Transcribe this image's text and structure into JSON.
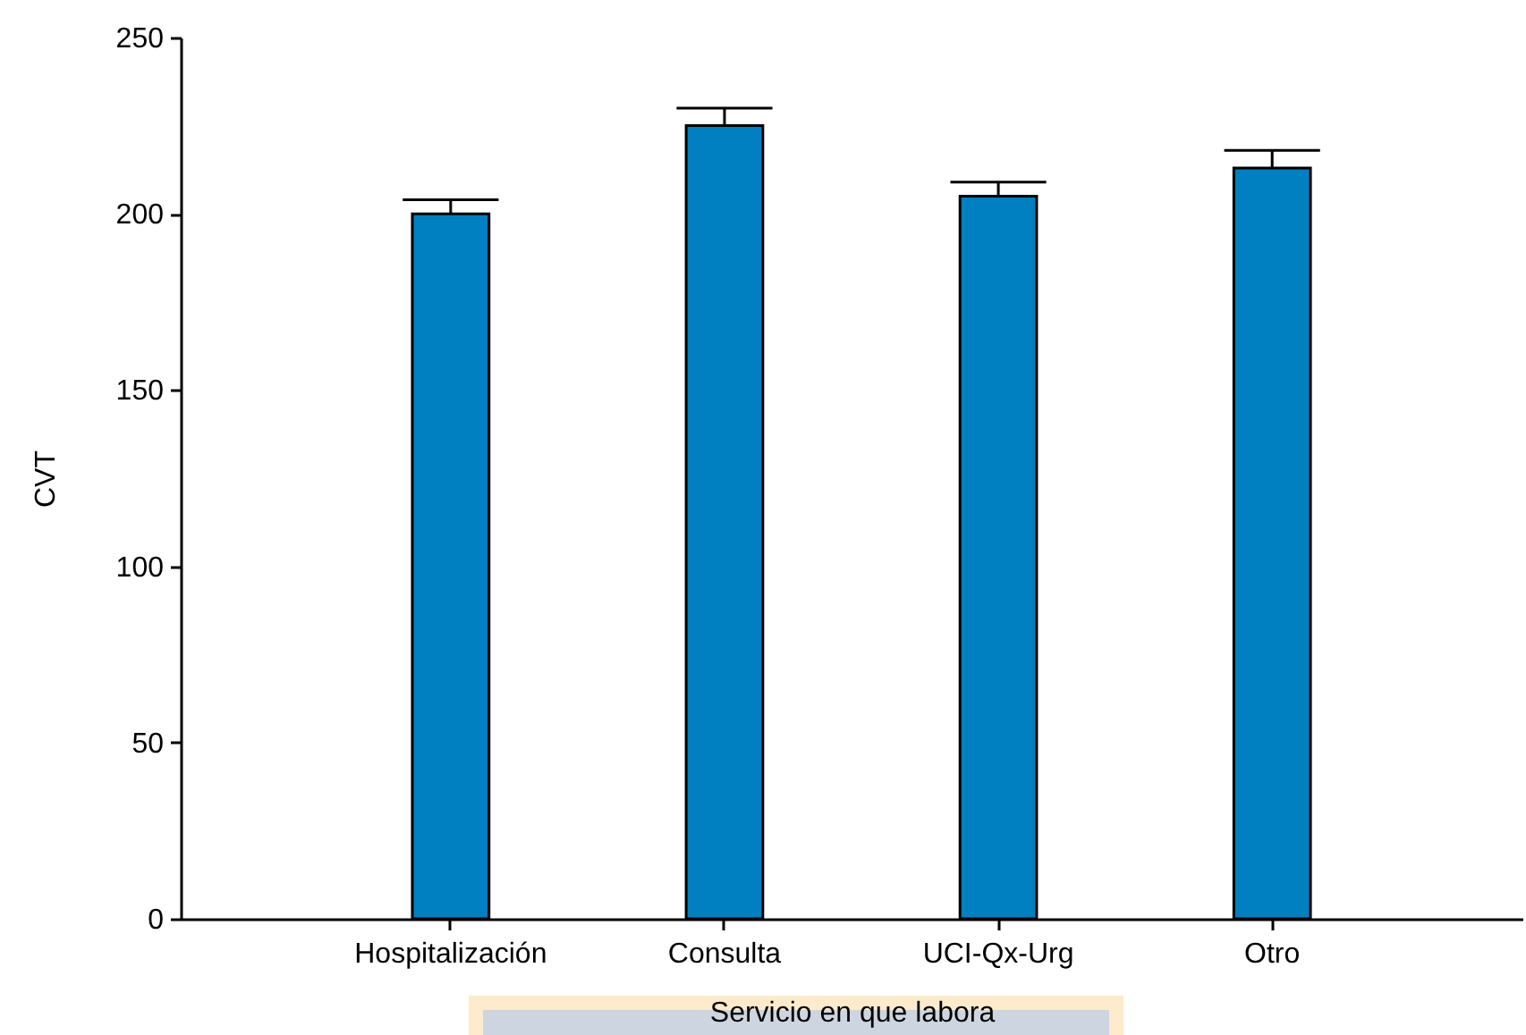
{
  "chart_data": {
    "type": "bar",
    "xlabel": "Servicio en que labora",
    "ylabel": "CVT",
    "categories": [
      "Hospitalización",
      "Consulta",
      "UCI-Qx-Urg",
      "Otro"
    ],
    "values": [
      200,
      225,
      205,
      213
    ],
    "errors": [
      4,
      5,
      4,
      5
    ],
    "color": "#0080c0",
    "ylim": [
      0,
      250
    ],
    "yticks": [
      0,
      50,
      100,
      150,
      200,
      250
    ]
  }
}
